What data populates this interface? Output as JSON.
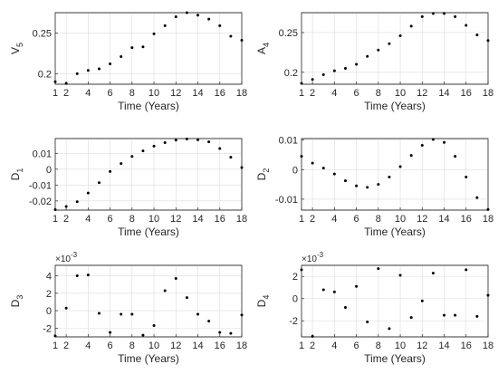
{
  "chart_data": [
    {
      "id": "v5",
      "type": "scatter",
      "ylabel": "V",
      "ylabel_sub": "5",
      "xlabel": "Time (Years)",
      "xlim": [
        1,
        18
      ],
      "xticks": [
        1,
        2,
        4,
        6,
        8,
        10,
        12,
        14,
        16,
        18
      ],
      "ylim": [
        0.187,
        0.275
      ],
      "yticks": [
        0.2,
        0.25
      ],
      "ytick_labels": [
        "0.2",
        "0.25"
      ],
      "y_exponent": "",
      "grid": true,
      "x": [
        1,
        2,
        3,
        4,
        5,
        6,
        7,
        8,
        9,
        10,
        11,
        12,
        13,
        14,
        15,
        16,
        17,
        18
      ],
      "y": [
        0.19,
        0.188,
        0.2,
        0.204,
        0.206,
        0.212,
        0.221,
        0.232,
        0.233,
        0.249,
        0.259,
        0.27,
        0.275,
        0.272,
        0.267,
        0.259,
        0.246,
        0.241
      ]
    },
    {
      "id": "a4",
      "type": "scatter",
      "ylabel": "A",
      "ylabel_sub": "4",
      "xlabel": "Time (Years)",
      "xlim": [
        1,
        18
      ],
      "xticks": [
        1,
        2,
        4,
        6,
        8,
        10,
        12,
        14,
        16,
        18
      ],
      "ylim": [
        0.185,
        0.275
      ],
      "yticks": [
        0.2,
        0.25
      ],
      "ytick_labels": [
        "0.2",
        "0.25"
      ],
      "y_exponent": "",
      "grid": true,
      "x": [
        1,
        2,
        3,
        4,
        5,
        6,
        7,
        8,
        9,
        10,
        11,
        12,
        13,
        14,
        15,
        16,
        17,
        18
      ],
      "y": [
        0.186,
        0.191,
        0.197,
        0.202,
        0.205,
        0.21,
        0.22,
        0.228,
        0.236,
        0.246,
        0.258,
        0.27,
        0.274,
        0.274,
        0.27,
        0.259,
        0.247,
        0.24
      ]
    },
    {
      "id": "d1",
      "type": "scatter",
      "ylabel": "D",
      "ylabel_sub": "1",
      "xlabel": "Time (Years)",
      "xlim": [
        1,
        18
      ],
      "xticks": [
        1,
        2,
        4,
        6,
        8,
        10,
        12,
        14,
        16,
        18
      ],
      "ylim": [
        -0.0258,
        0.0193
      ],
      "yticks": [
        -0.02,
        -0.01,
        0,
        0.01
      ],
      "ytick_labels": [
        "-0.02",
        "-0.01",
        "0",
        "0.01"
      ],
      "y_exponent": "",
      "grid": true,
      "x": [
        1,
        2,
        3,
        4,
        5,
        6,
        7,
        8,
        9,
        10,
        11,
        12,
        13,
        14,
        15,
        16,
        17,
        18
      ],
      "y": [
        -0.0255,
        -0.0235,
        -0.0205,
        -0.015,
        -0.0085,
        -0.0015,
        0.0035,
        0.008,
        0.0115,
        0.0145,
        0.0167,
        0.0183,
        0.019,
        0.0185,
        0.0172,
        0.013,
        0.0075,
        0.001
      ]
    },
    {
      "id": "d2",
      "type": "scatter",
      "ylabel": "D",
      "ylabel_sub": "2",
      "xlabel": "Time (Years)",
      "xlim": [
        1,
        18
      ],
      "xticks": [
        1,
        2,
        4,
        6,
        8,
        10,
        12,
        14,
        16,
        18
      ],
      "ylim": [
        -0.0137,
        0.0105
      ],
      "yticks": [
        -0.01,
        0,
        0.01
      ],
      "ytick_labels": [
        "-0.01",
        "0",
        "0.01"
      ],
      "y_exponent": "",
      "grid": true,
      "x": [
        1,
        2,
        3,
        4,
        5,
        6,
        7,
        8,
        9,
        10,
        11,
        12,
        13,
        14,
        15,
        16,
        17,
        18
      ],
      "y": [
        0.0045,
        0.0022,
        0.0005,
        -0.0015,
        -0.0038,
        -0.0055,
        -0.006,
        -0.005,
        -0.0025,
        0.001,
        0.0048,
        0.0082,
        0.0102,
        0.0092,
        0.0045,
        -0.0025,
        -0.0095,
        -0.0135
      ]
    },
    {
      "id": "d3",
      "type": "scatter",
      "ylabel": "D",
      "ylabel_sub": "3",
      "xlabel": "Time (Years)",
      "xlim": [
        1,
        18
      ],
      "xticks": [
        1,
        2,
        4,
        6,
        8,
        10,
        12,
        14,
        16,
        18
      ],
      "ylim": [
        -3.0,
        5.2
      ],
      "yticks": [
        -2,
        0,
        2,
        4
      ],
      "ytick_labels": [
        "-2",
        "0",
        "2",
        "4"
      ],
      "y_exponent": "×10",
      "y_exponent_power": "-3",
      "grid": true,
      "x": [
        1,
        2,
        3,
        4,
        5,
        6,
        7,
        8,
        9,
        10,
        11,
        12,
        13,
        14,
        15,
        16,
        17,
        18
      ],
      "y": [
        -2.9,
        0.3,
        4.0,
        4.1,
        -0.3,
        -2.5,
        -0.4,
        -0.4,
        -2.8,
        -1.7,
        2.3,
        3.7,
        1.5,
        -0.4,
        -1.2,
        -2.5,
        -2.6,
        -0.5
      ]
    },
    {
      "id": "d4",
      "type": "scatter",
      "ylabel": "D",
      "ylabel_sub": "4",
      "xlabel": "Time (Years)",
      "xlim": [
        1,
        18
      ],
      "xticks": [
        1,
        2,
        4,
        6,
        8,
        10,
        12,
        14,
        16,
        18
      ],
      "ylim": [
        -3.45,
        3.0
      ],
      "yticks": [
        -2,
        0,
        2
      ],
      "ytick_labels": [
        "-2",
        "0",
        "2"
      ],
      "y_exponent": "×10",
      "y_exponent_power": "-3",
      "grid": true,
      "x": [
        1,
        2,
        3,
        4,
        5,
        6,
        7,
        8,
        9,
        10,
        11,
        12,
        13,
        14,
        15,
        16,
        17,
        18
      ],
      "y": [
        2.6,
        -3.4,
        0.8,
        0.6,
        -0.8,
        1.1,
        -2.1,
        2.7,
        -2.7,
        2.1,
        -1.7,
        -0.2,
        2.3,
        -1.5,
        -1.5,
        2.6,
        -1.6,
        0.3
      ]
    }
  ]
}
